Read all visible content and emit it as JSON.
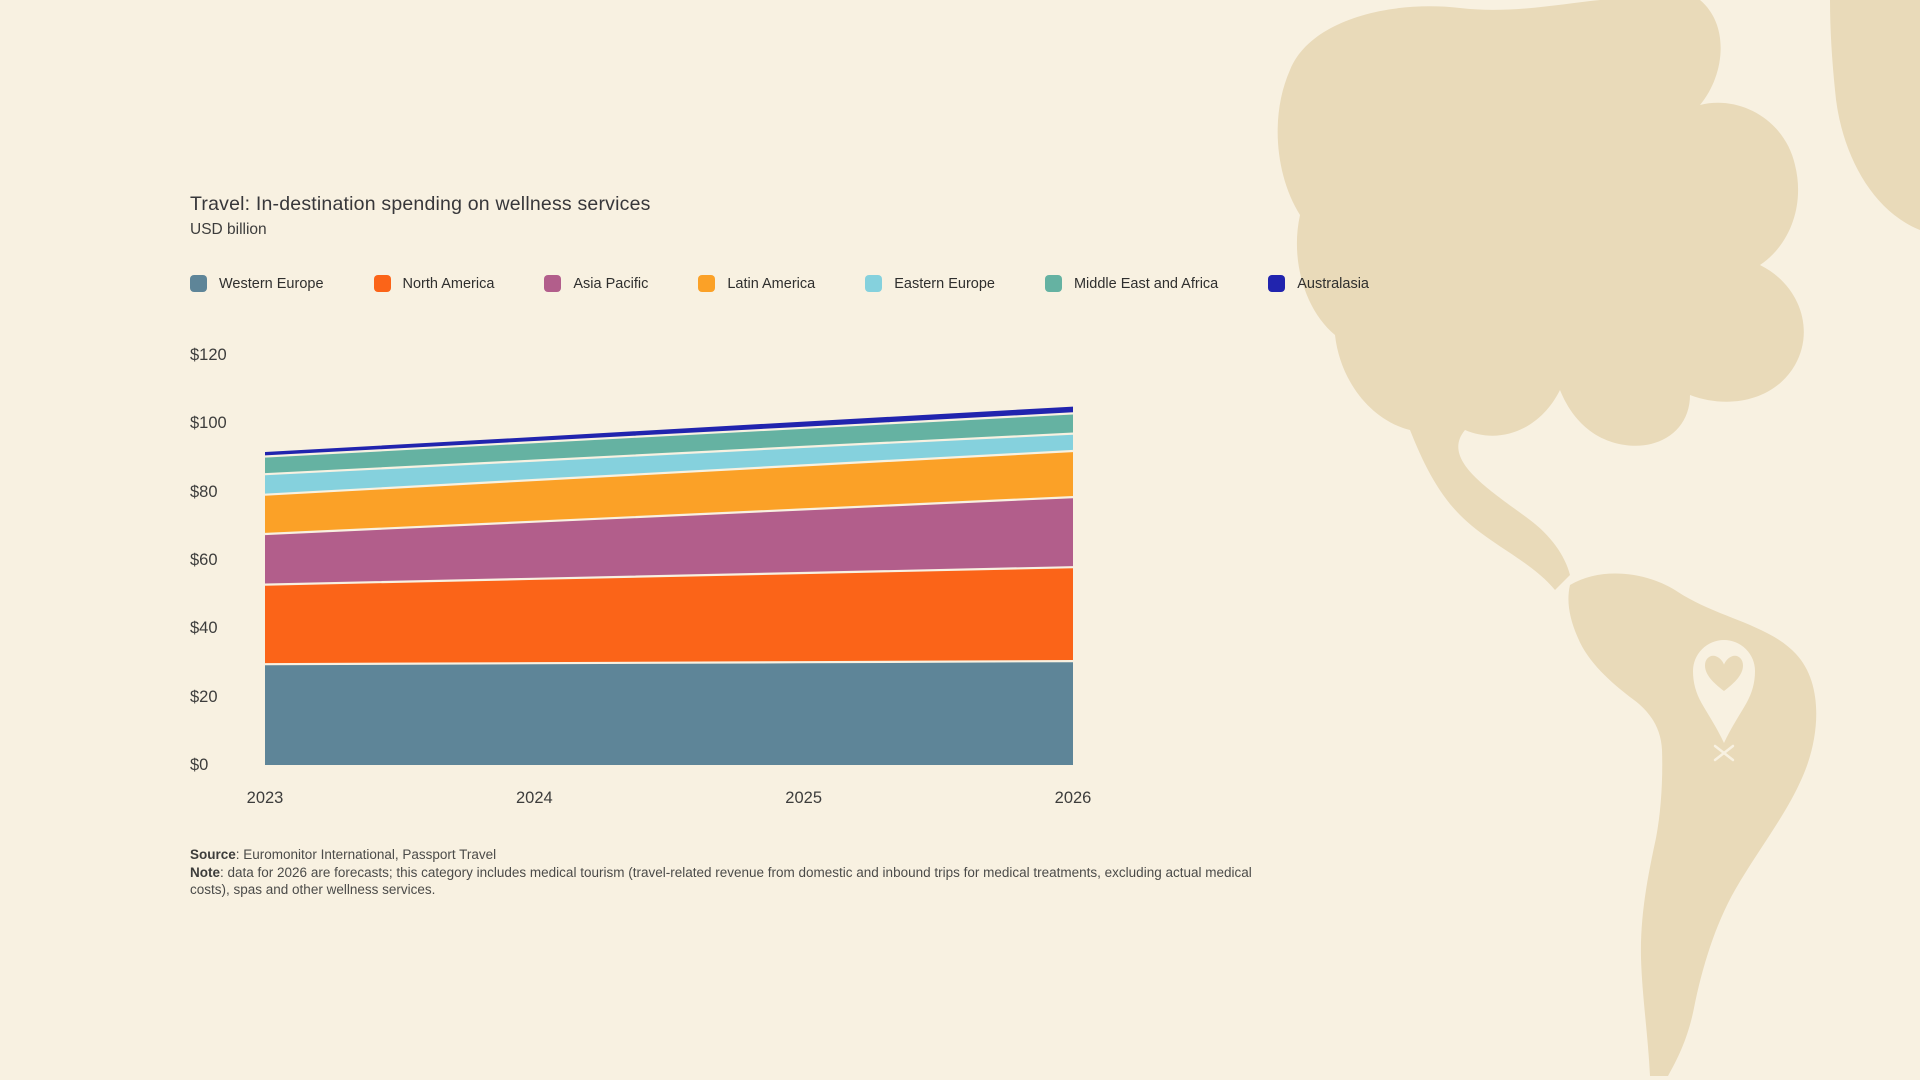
{
  "header": {
    "title": "Travel: In-destination spending on wellness services",
    "subtitle": "USD billion"
  },
  "footer": {
    "source_label": "Source",
    "source_rest": ": Euromonitor International, Passport Travel",
    "note_label": "Note",
    "note_rest": ": data for 2026 are forecasts; this category includes medical tourism (travel-related revenue from domestic and inbound trips for medical treatments, excluding actual medical costs), spas and other wellness services."
  },
  "colors": {
    "background": "#f8f1e1",
    "map_land": "#e9dab9",
    "pin": "#f8f1e1",
    "separator": "#f8f1e1"
  },
  "map": {
    "pin_icon": "heart-location-pin",
    "region": "Americas silhouette"
  },
  "chart_data": {
    "type": "area",
    "stacked": true,
    "title": "Travel: In-destination spending on wellness services",
    "ylabel": "USD billion",
    "x": [
      "2023",
      "2024",
      "2025",
      "2026"
    ],
    "series": [
      {
        "name": "Western Europe",
        "color": "#5e8598",
        "values": [
          29.5,
          29.8,
          30.1,
          30.4
        ]
      },
      {
        "name": "North America",
        "color": "#fb6418",
        "values": [
          23.3,
          24.7,
          26.1,
          27.5
        ]
      },
      {
        "name": "Asia Pacific",
        "color": "#b25e8b",
        "values": [
          14.8,
          16.7,
          18.6,
          20.5
        ]
      },
      {
        "name": "Latin America",
        "color": "#fba127",
        "values": [
          11.5,
          12.2,
          12.9,
          13.5
        ]
      },
      {
        "name": "Eastern Europe",
        "color": "#85d1dd",
        "values": [
          6.0,
          5.7,
          5.4,
          5.1
        ]
      },
      {
        "name": "Middle East and Africa",
        "color": "#65b2a2",
        "values": [
          5.2,
          5.4,
          5.6,
          5.9
        ]
      },
      {
        "name": "Australasia",
        "color": "#2124ae",
        "values": [
          1.3,
          1.5,
          1.8,
          2.0
        ]
      }
    ],
    "ylim": [
      0,
      120
    ],
    "ytick_labels": [
      "$0",
      "$20",
      "$40",
      "$60",
      "$80",
      "$100",
      "$120"
    ],
    "grid": false,
    "legend_position": "top"
  }
}
